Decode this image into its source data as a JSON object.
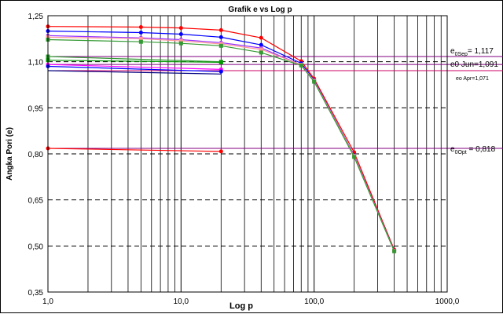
{
  "chart_data": {
    "type": "line",
    "title": "Grafik e vs Log p",
    "xlabel": "Log p",
    "ylabel": "Angka Pori (e)",
    "x_scale": "log",
    "xlim": [
      1,
      1000
    ],
    "ylim": [
      0.35,
      1.25
    ],
    "x_tick_labels": [
      "1,0",
      "10,0",
      "100,0",
      "1000,0"
    ],
    "y_ticks": [
      0.35,
      0.5,
      0.65,
      0.8,
      0.95,
      1.1,
      1.25
    ],
    "y_tick_labels": [
      "0,35",
      "0,50",
      "0,65",
      "0,80",
      "0,95",
      "1,10",
      "1,25"
    ],
    "grid": "on",
    "legend": "none",
    "series": [
      {
        "color": "#ff0000",
        "marker": "circle",
        "x": [
          1,
          5,
          10,
          20,
          40,
          80,
          100,
          200,
          400
        ],
        "y": [
          1.215,
          1.213,
          1.21,
          1.203,
          1.178,
          1.102,
          1.045,
          0.805,
          0.488
        ]
      },
      {
        "color": "#0000ff",
        "marker": "circle",
        "x": [
          1,
          5,
          10,
          20,
          40,
          80,
          100,
          200,
          400
        ],
        "y": [
          1.2,
          1.195,
          1.19,
          1.18,
          1.155,
          1.095,
          1.04,
          0.795,
          0.485
        ]
      },
      {
        "color": "#9933ff",
        "marker": "circle",
        "x": [
          1,
          5,
          10,
          20,
          40,
          80,
          100,
          200,
          400
        ],
        "y": [
          1.185,
          1.178,
          1.172,
          1.162,
          1.145,
          1.09,
          1.036,
          0.792,
          0.484
        ]
      },
      {
        "color": "#ff9999",
        "marker": "square",
        "x": [
          1,
          5,
          10,
          20,
          40,
          80,
          100,
          200,
          400
        ],
        "y": [
          1.18,
          1.175,
          1.168,
          1.158,
          1.14,
          1.09,
          1.038,
          0.793,
          0.484
        ]
      },
      {
        "color": "#339933",
        "marker": "square",
        "x": [
          1,
          5,
          10,
          20,
          40,
          80,
          100,
          200,
          400
        ],
        "y": [
          1.172,
          1.165,
          1.16,
          1.152,
          1.13,
          1.088,
          1.035,
          0.79,
          0.483
        ]
      },
      {
        "color": "#339933",
        "marker": "square",
        "x": [
          1,
          20
        ],
        "y": [
          1.117,
          1.1
        ]
      },
      {
        "color": "#009900",
        "marker": "square",
        "x": [
          1,
          20
        ],
        "y": [
          1.105,
          1.098
        ]
      },
      {
        "color": "#ff00ff",
        "marker": "circle",
        "x": [
          1,
          20
        ],
        "y": [
          1.091,
          1.075
        ]
      },
      {
        "color": "#0000ff",
        "marker": "circle",
        "x": [
          1,
          20
        ],
        "y": [
          1.085,
          1.068
        ]
      },
      {
        "color": "#000080",
        "marker": "none",
        "x": [
          1,
          20
        ],
        "y": [
          1.071,
          1.06
        ]
      },
      {
        "color": "#ff0000",
        "marker": "circle",
        "x": [
          1,
          20
        ],
        "y": [
          0.818,
          0.808
        ]
      }
    ],
    "reference_lines": [
      {
        "y": 1.117,
        "color": "#800080",
        "label_main": "e",
        "label_sub": "0Sep",
        "label_rest": "= 1,117"
      },
      {
        "y": 1.091,
        "color": "#800080",
        "label_main": "e0 Jun=1,091",
        "label_sub": "",
        "label_rest": ""
      },
      {
        "y": 1.071,
        "color": "#cc0066",
        "label_main": "eo Apr=1,071",
        "label_sub": "",
        "label_rest": ""
      },
      {
        "y": 0.818,
        "color": "#800080",
        "label_main": "e",
        "label_sub": "0Opt",
        "label_rest": " = 0,818"
      }
    ]
  }
}
